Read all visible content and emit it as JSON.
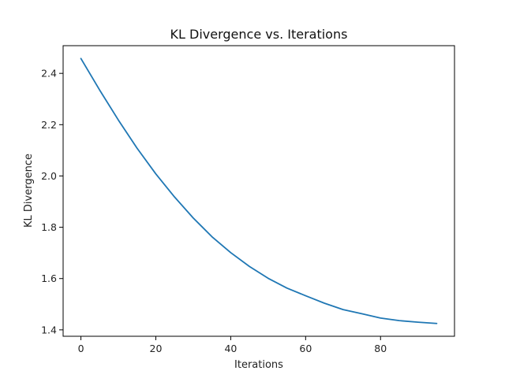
{
  "chart_data": {
    "type": "line",
    "title": "KL Divergence vs. Iterations",
    "xlabel": "Iterations",
    "ylabel": "KL Divergence",
    "xlim": [
      -4.75,
      99.75
    ],
    "ylim": [
      1.375,
      2.508
    ],
    "xticks": [
      0,
      20,
      40,
      60,
      80
    ],
    "yticks": [
      1.4,
      1.6,
      1.8,
      2.0,
      2.2,
      2.4
    ],
    "xtick_labels": [
      "0",
      "20",
      "40",
      "60",
      "80"
    ],
    "ytick_labels": [
      "1.4",
      "1.6",
      "1.8",
      "2.0",
      "2.2",
      "2.4"
    ],
    "grid": false,
    "line_color": "#1f77b4",
    "series": [
      {
        "x": [
          0,
          5,
          10,
          15,
          20,
          25,
          30,
          35,
          40,
          45,
          50,
          55,
          60,
          65,
          70,
          75,
          80,
          85,
          90,
          95
        ],
        "values": [
          2.458,
          2.335,
          2.218,
          2.108,
          2.008,
          1.918,
          1.836,
          1.763,
          1.701,
          1.647,
          1.601,
          1.563,
          1.533,
          1.504,
          1.479,
          1.463,
          1.446,
          1.436,
          1.43,
          1.425
        ]
      }
    ]
  }
}
